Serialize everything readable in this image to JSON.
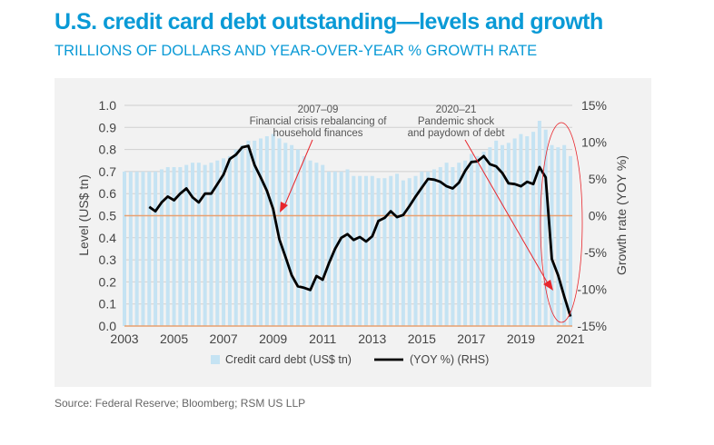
{
  "title": "U.S. credit card debt outstanding—levels and growth",
  "subtitle": "TRILLIONS OF DOLLARS AND YEAR-OVER-YEAR % GROWTH RATE",
  "source": "Source: Federal Reserve; Bloomberg; RSM US LLP",
  "chart_data": {
    "type": "bar+line",
    "ylabel": "Level (US$ tn)",
    "y2label": "Growth rate (YOY %)",
    "ylim": [
      0,
      1.0
    ],
    "y2lim": [
      -15,
      15
    ],
    "xlim": [
      2003,
      2021
    ],
    "yticks": [
      "0.0",
      "0.1",
      "0.2",
      "0.3",
      "0.4",
      "0.5",
      "0.6",
      "0.7",
      "0.8",
      "0.9",
      "1.0"
    ],
    "y2ticks": [
      "-15%",
      "-10%",
      "-5%",
      "0%",
      "5%",
      "10%",
      "15%"
    ],
    "xticks": [
      "2003",
      "2005",
      "2007",
      "2009",
      "2011",
      "2013",
      "2015",
      "2017",
      "2019",
      "2021"
    ],
    "grid": true,
    "legend_position": "bottom",
    "colors": {
      "bars": "#c5e3f3",
      "line": "#000000",
      "zero_line": "#e8a070",
      "annotation": "#e8262c"
    },
    "series": [
      {
        "name": "Credit card debt (US$ tn)",
        "type": "bar",
        "axis": "left",
        "start": "2003-Q1",
        "frequency": "quarterly",
        "values": [
          0.7,
          0.7,
          0.7,
          0.7,
          0.7,
          0.7,
          0.71,
          0.72,
          0.72,
          0.72,
          0.73,
          0.74,
          0.74,
          0.73,
          0.74,
          0.75,
          0.76,
          0.77,
          0.8,
          0.82,
          0.84,
          0.84,
          0.85,
          0.86,
          0.87,
          0.85,
          0.83,
          0.82,
          0.8,
          0.77,
          0.75,
          0.74,
          0.73,
          0.7,
          0.7,
          0.7,
          0.71,
          0.68,
          0.68,
          0.68,
          0.68,
          0.67,
          0.67,
          0.68,
          0.69,
          0.66,
          0.67,
          0.68,
          0.7,
          0.7,
          0.71,
          0.72,
          0.74,
          0.72,
          0.74,
          0.75,
          0.78,
          0.77,
          0.79,
          0.81,
          0.84,
          0.82,
          0.83,
          0.85,
          0.87,
          0.86,
          0.88,
          0.93,
          0.89,
          0.82,
          0.81,
          0.82,
          0.77
        ]
      },
      {
        "name": "(YOY %) (RHS)",
        "type": "line",
        "axis": "right",
        "start": "2004-Q1",
        "frequency": "quarterly",
        "values": [
          1.2,
          0.6,
          1.8,
          2.6,
          2.1,
          3.0,
          3.7,
          2.5,
          1.8,
          3.0,
          3.0,
          4.3,
          5.6,
          7.7,
          8.3,
          9.3,
          9.5,
          6.9,
          5.2,
          3.4,
          0.9,
          -3.2,
          -5.6,
          -8.1,
          -9.6,
          -9.8,
          -10.1,
          -8.2,
          -8.7,
          -6.5,
          -4.5,
          -3.0,
          -2.5,
          -3.3,
          -2.9,
          -3.5,
          -2.8,
          -0.7,
          -0.3,
          0.6,
          -0.2,
          0.1,
          1.3,
          2.6,
          3.8,
          5.0,
          4.9,
          4.6,
          4.0,
          3.7,
          4.5,
          6.1,
          7.3,
          7.4,
          8.1,
          7.0,
          6.7,
          5.8,
          4.4,
          4.3,
          4.0,
          4.6,
          4.3,
          6.6,
          5.2,
          -5.9,
          -8.1,
          -11.0,
          -13.7
        ]
      }
    ],
    "annotations": [
      {
        "lines": [
          "2007–09",
          "Financial crisis rebalancing of",
          "household finances"
        ]
      },
      {
        "lines": [
          "2020–21",
          "Pandemic shock",
          "and paydown of debt"
        ]
      }
    ]
  }
}
